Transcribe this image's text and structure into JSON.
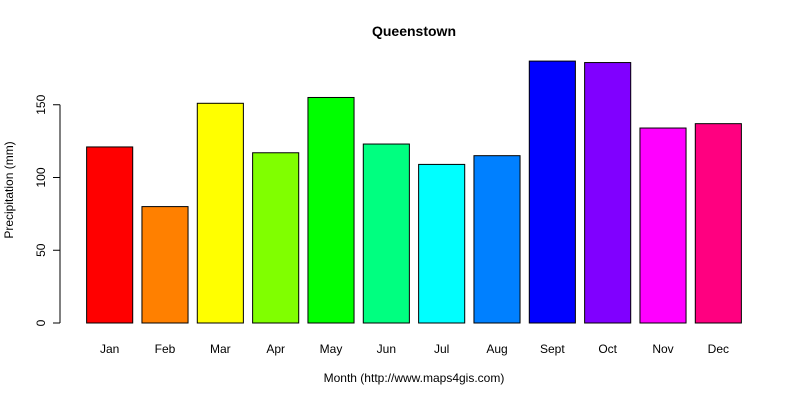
{
  "chart_data": {
    "type": "bar",
    "title": "Queenstown",
    "xlabel": "Month (http://www.maps4gis.com)",
    "ylabel": "Precipitation (mm)",
    "categories": [
      "Jan",
      "Feb",
      "Mar",
      "Apr",
      "May",
      "Jun",
      "Jul",
      "Aug",
      "Sept",
      "Oct",
      "Nov",
      "Dec"
    ],
    "values": [
      121,
      80,
      151,
      117,
      155,
      123,
      109,
      115,
      180,
      179,
      134,
      137
    ],
    "colors": [
      "#FF0000",
      "#FF8000",
      "#FFFF00",
      "#80FF00",
      "#00FF00",
      "#00FF80",
      "#00FFFF",
      "#0080FF",
      "#0000FF",
      "#8000FF",
      "#FF00FF",
      "#FF0080"
    ],
    "ylim": [
      0,
      180
    ],
    "yticks": [
      0,
      50,
      100,
      150
    ],
    "grid": false,
    "legend": "none"
  }
}
